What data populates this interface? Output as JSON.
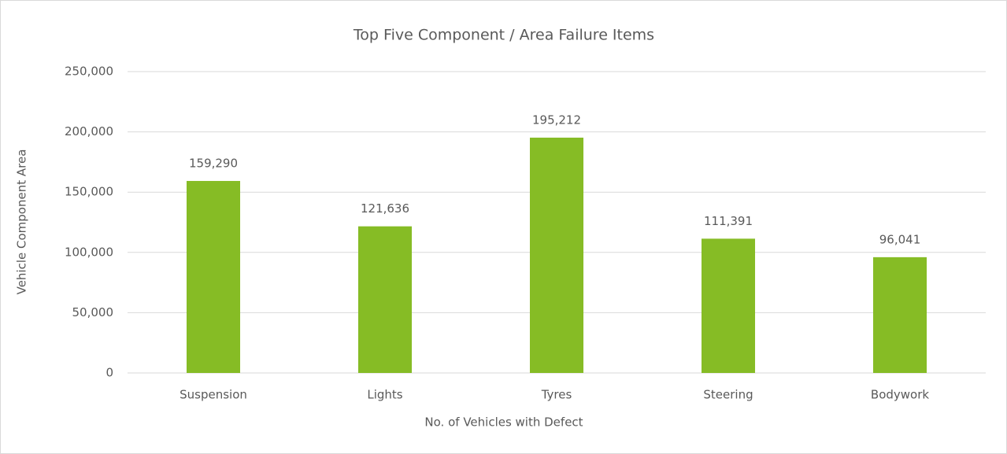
{
  "chart_data": {
    "type": "bar",
    "title": "Top Five Component / Area Failure Items",
    "x_label": "No. of Vehicles with Defect",
    "y_label": "Vehicle Component Area",
    "categories": [
      "Suspension",
      "Lights",
      "Tyres",
      "Steering",
      "Bodywork"
    ],
    "values": [
      159290,
      121636,
      195212,
      111391,
      96041
    ],
    "value_labels": [
      "159,290",
      "121,636",
      "195,212",
      "111,391",
      "96,041"
    ],
    "color": "#86bc25",
    "ylim": [
      0,
      250000
    ],
    "yticks": [
      0,
      {
        "value": 50000,
        "label": "50,000"
      },
      {
        "value": 100000,
        "label": "100,000"
      },
      {
        "value": 150000,
        "label": "150,000"
      },
      {
        "value": 200000,
        "label": "200,000"
      },
      {
        "value": 250000,
        "label": "250,000"
      }
    ],
    "grid": true
  }
}
